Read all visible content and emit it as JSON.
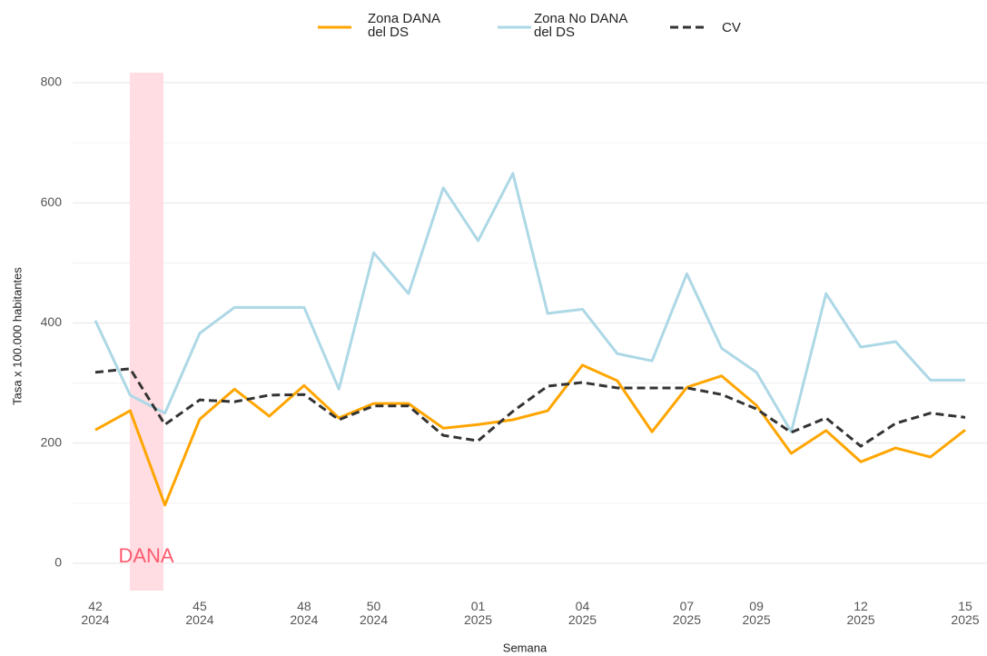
{
  "chart_data": {
    "type": "line",
    "x_label": "Semana",
    "y_label": "Tasa x 100.000 habitantes",
    "annotation": "DANA",
    "categories": [
      "42\n2024",
      null,
      null,
      "45\n2024",
      null,
      null,
      "48\n2024",
      null,
      "50\n2024",
      null,
      null,
      "01\n2025",
      null,
      null,
      "04\n2025",
      null,
      null,
      "07\n2025",
      null,
      "09\n2025",
      null,
      null,
      "12\n2025",
      null,
      null,
      "15\n2025"
    ],
    "series": [
      {
        "name": "Zona DANA\ndel DS",
        "color": "#FFA500",
        "dash": false,
        "values": [
          222,
          254,
          97,
          240,
          290,
          245,
          296,
          242,
          266,
          266,
          225,
          231,
          239,
          254,
          330,
          304,
          219,
          293,
          312,
          263,
          183,
          221,
          169,
          192,
          177,
          222
        ]
      },
      {
        "name": "Zona No DANA\ndel DS",
        "color": "#ADD8E6",
        "dash": false,
        "values": [
          404,
          280,
          250,
          383,
          426,
          426,
          426,
          290,
          517,
          449,
          625,
          537,
          649,
          416,
          423,
          349,
          337,
          482,
          358,
          318,
          219,
          449,
          360,
          369,
          305,
          305
        ]
      },
      {
        "name": "CV",
        "color": "#333333",
        "dash": true,
        "values": [
          318,
          324,
          231,
          272,
          269,
          280,
          281,
          239,
          262,
          262,
          213,
          204,
          253,
          295,
          301,
          292,
          292,
          292,
          281,
          257,
          218,
          242,
          195,
          233,
          250,
          243
        ]
      }
    ],
    "ylim": [
      -45,
      820
    ],
    "yticks": [
      0,
      200,
      400,
      600,
      800
    ],
    "minor_yticks": [
      100,
      300,
      500,
      700
    ],
    "grid": true,
    "legend": "top"
  }
}
